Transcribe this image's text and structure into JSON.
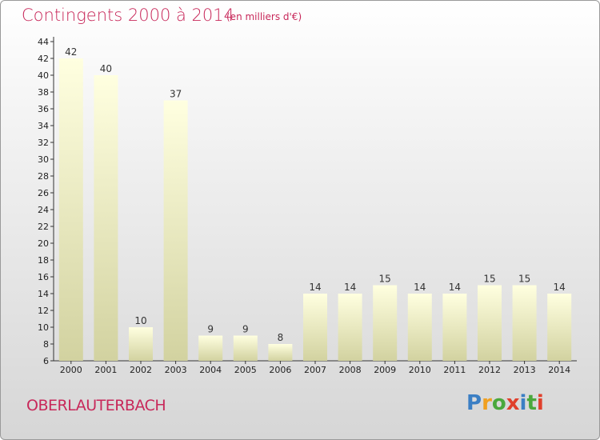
{
  "header": {
    "title": "Contingents 2000 à 2014",
    "unit_note": "(en milliers d'€)"
  },
  "commune": "OBERLAUTERBACH",
  "logo": {
    "letters": [
      "P",
      "r",
      "o",
      "x",
      "i",
      "t",
      "i"
    ],
    "colors": [
      "#3b7fc4",
      "#f0a020",
      "#4aa83c",
      "#e0402c",
      "#3b7fc4",
      "#4aa83c",
      "#e0402c"
    ]
  },
  "colors": {
    "accent": "#c8285a",
    "bar_top": "#ffffe0",
    "bar_bottom": "#d2d2a0"
  },
  "chart_data": {
    "type": "bar",
    "categories": [
      "2000",
      "2001",
      "2002",
      "2003",
      "2004",
      "2005",
      "2006",
      "2007",
      "2008",
      "2009",
      "2010",
      "2011",
      "2012",
      "2013",
      "2014"
    ],
    "values": [
      42,
      40,
      10,
      37,
      9,
      9,
      8,
      14,
      14,
      15,
      14,
      14,
      15,
      15,
      14
    ],
    "value_labels": [
      "42",
      "40",
      "10",
      "37",
      "9",
      "9",
      "8",
      "14",
      "14",
      "15",
      "14",
      "14",
      "15",
      "15",
      "14"
    ],
    "ylim": [
      6,
      44
    ],
    "yticks": [
      "6",
      "8",
      "10",
      "12",
      "14",
      "16",
      "18",
      "20",
      "22",
      "24",
      "26",
      "28",
      "30",
      "32",
      "34",
      "36",
      "38",
      "40",
      "42",
      "44"
    ],
    "grid": false,
    "title": "Contingents 2000 à 2014",
    "xlabel": "",
    "ylabel": ""
  }
}
